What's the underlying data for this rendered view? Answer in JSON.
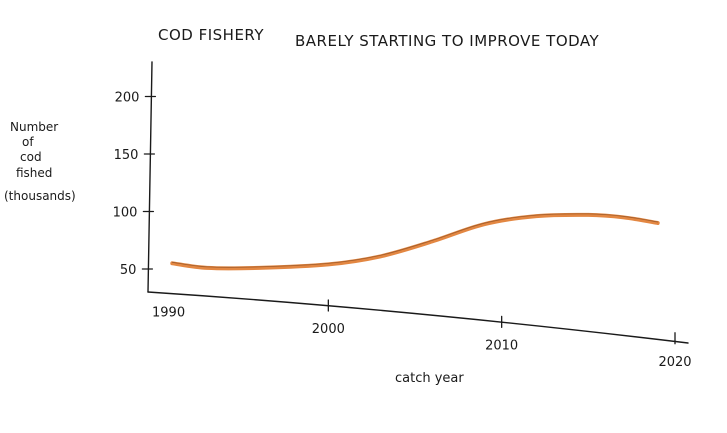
{
  "chart_data": {
    "type": "line",
    "title_parts": [
      "COD FISHERY",
      "BARELY STARTING TO IMPROVE TODAY"
    ],
    "xlabel": "catch year",
    "ylabel_lines": [
      "Number",
      "of",
      "cod",
      "fished",
      "(thousands)"
    ],
    "x_ticks": [
      {
        "value": 1990,
        "label": "1990"
      },
      {
        "value": 2000,
        "label": "2000"
      },
      {
        "value": 2010,
        "label": "2010"
      },
      {
        "value": 2020,
        "label": "2020"
      }
    ],
    "y_ticks": [
      {
        "value": 50,
        "label": "50"
      },
      {
        "value": 100,
        "label": "100"
      },
      {
        "value": 150,
        "label": "150"
      },
      {
        "value": 200,
        "label": "200"
      }
    ],
    "xlim": [
      1990,
      2020
    ],
    "ylim": [
      30,
      230
    ],
    "series": [
      {
        "color": "#e07a2e",
        "points": [
          {
            "x": 1991,
            "y": 55
          },
          {
            "x": 1993,
            "y": 51
          },
          {
            "x": 1996,
            "y": 51
          },
          {
            "x": 2000,
            "y": 54
          },
          {
            "x": 2003,
            "y": 61
          },
          {
            "x": 2006,
            "y": 74
          },
          {
            "x": 2009,
            "y": 89
          },
          {
            "x": 2012,
            "y": 96
          },
          {
            "x": 2015,
            "y": 97
          },
          {
            "x": 2017,
            "y": 95
          },
          {
            "x": 2019,
            "y": 90
          }
        ]
      }
    ]
  }
}
